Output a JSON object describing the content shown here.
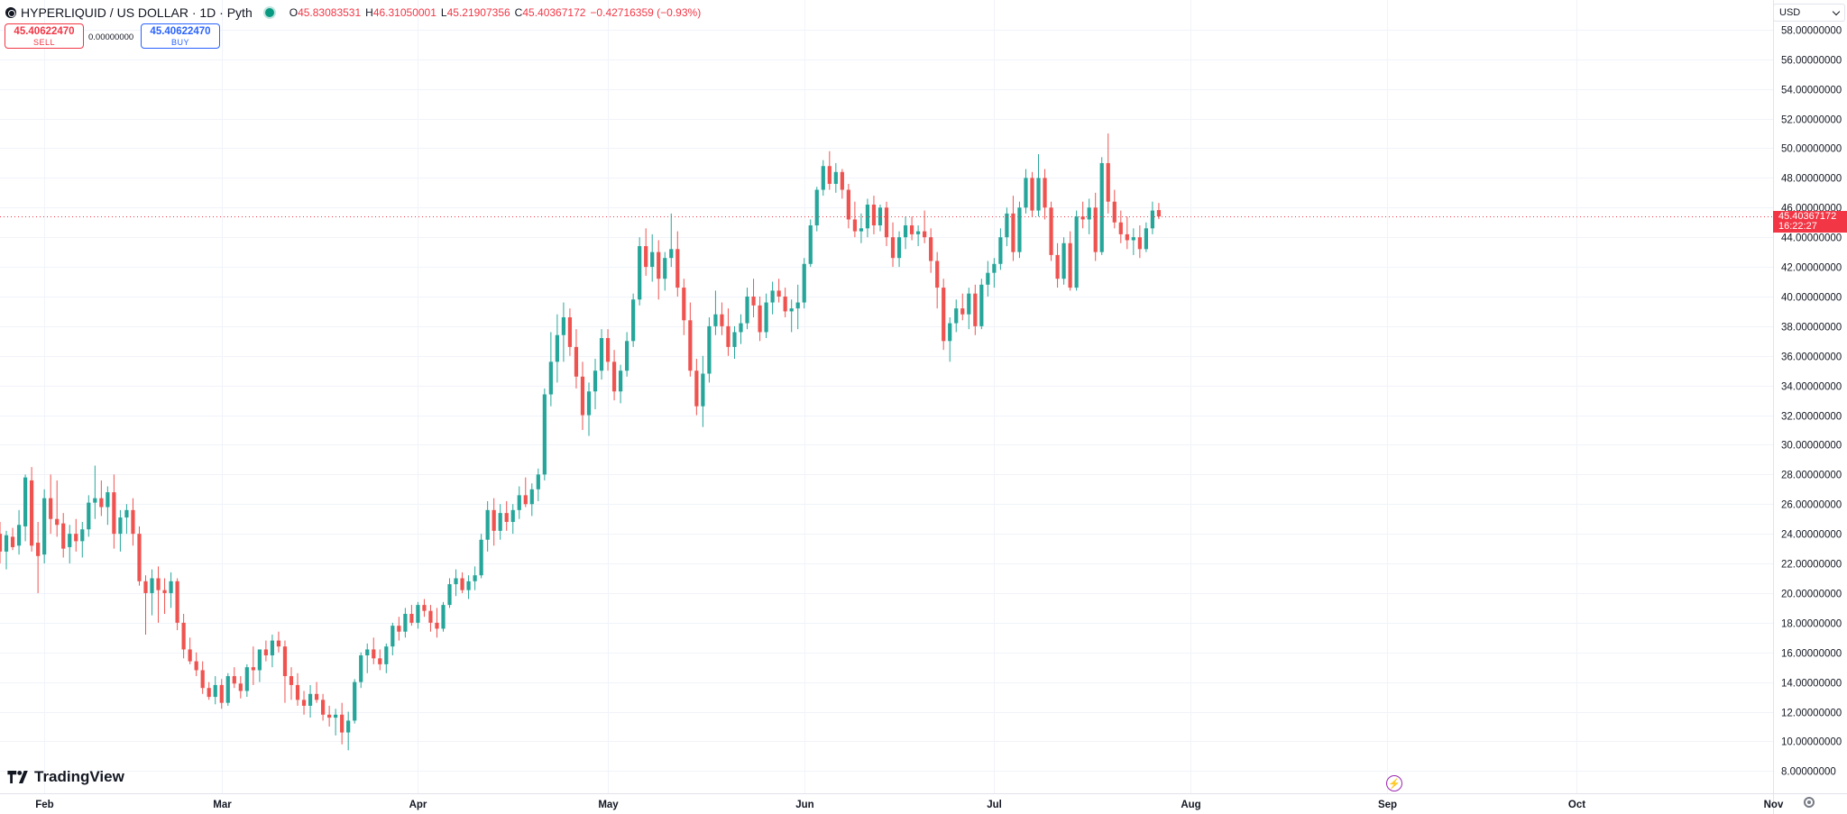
{
  "legend": {
    "symbol": "HYPERLIQUID / US DOLLAR · 1D · Pyth",
    "open_label": "O",
    "open": "45.83083531",
    "high_label": "H",
    "high": "46.31050001",
    "low_label": "L",
    "low": "45.21907356",
    "close_label": "C",
    "close": "45.40367172",
    "change": "−0.42716359 (−0.93%)"
  },
  "trade": {
    "sell_price": "45.40622470",
    "sell_label": "SELL",
    "spread": "0.00000000",
    "buy_price": "45.40622470",
    "buy_label": "BUY"
  },
  "currency": "USD",
  "brand": "TradingView",
  "last_price": {
    "price": "45.40367172",
    "countdown": "16:22:27"
  },
  "colors": {
    "up": "#26a69a",
    "down": "#ef5350",
    "grid": "#f0f3fa",
    "text": "#131722"
  },
  "chart_data": {
    "type": "candlestick",
    "y_ticks": [
      "8.00000000",
      "10.00000000",
      "12.00000000",
      "14.00000000",
      "16.00000000",
      "18.00000000",
      "20.00000000",
      "22.00000000",
      "24.00000000",
      "26.00000000",
      "28.00000000",
      "30.00000000",
      "32.00000000",
      "34.00000000",
      "36.00000000",
      "38.00000000",
      "40.00000000",
      "42.00000000",
      "44.00000000",
      "46.00000000",
      "48.00000000",
      "50.00000000",
      "52.00000000",
      "54.00000000",
      "56.00000000",
      "58.00000000"
    ],
    "ylim": [
      6.5,
      60
    ],
    "x_ticks": [
      {
        "label": "Feb",
        "x": "2025-02-01"
      },
      {
        "label": "Mar",
        "x": "2025-03-01"
      },
      {
        "label": "Apr",
        "x": "2025-04-01"
      },
      {
        "label": "May",
        "x": "2025-05-01"
      },
      {
        "label": "Jun",
        "x": "2025-06-01"
      },
      {
        "label": "Jul",
        "x": "2025-07-01"
      },
      {
        "label": "Aug",
        "x": "2025-08-01"
      },
      {
        "label": "Sep",
        "x": "2025-09-01"
      },
      {
        "label": "Oct",
        "x": "2025-10-01"
      },
      {
        "label": "Nov",
        "x": "2025-11-01"
      }
    ],
    "xlim": [
      "2025-01-25",
      "2025-11-01"
    ],
    "first_date": "2025-01-25",
    "candles": [
      [
        24.0,
        24.8,
        22.0,
        22.8
      ],
      [
        22.8,
        24.2,
        21.6,
        23.9
      ],
      [
        23.8,
        24.4,
        22.9,
        23.1
      ],
      [
        23.2,
        25.6,
        22.6,
        24.6
      ],
      [
        24.5,
        28.0,
        23.5,
        27.8
      ],
      [
        27.6,
        28.5,
        22.8,
        23.2
      ],
      [
        23.4,
        24.8,
        20.0,
        22.5
      ],
      [
        22.6,
        27.0,
        22.0,
        26.4
      ],
      [
        26.4,
        28.0,
        24.0,
        25.0
      ],
      [
        25.0,
        27.6,
        23.8,
        24.6
      ],
      [
        24.7,
        25.4,
        22.4,
        23.0
      ],
      [
        23.1,
        24.6,
        22.0,
        24.0
      ],
      [
        24.0,
        25.0,
        22.8,
        23.5
      ],
      [
        23.5,
        24.8,
        22.4,
        24.3
      ],
      [
        24.3,
        26.6,
        23.8,
        26.1
      ],
      [
        26.1,
        28.6,
        25.0,
        26.4
      ],
      [
        26.4,
        27.6,
        25.2,
        25.8
      ],
      [
        25.8,
        27.2,
        24.6,
        26.8
      ],
      [
        26.8,
        28.0,
        23.0,
        24.0
      ],
      [
        24.0,
        25.6,
        22.8,
        25.1
      ],
      [
        25.1,
        26.0,
        24.0,
        25.6
      ],
      [
        25.6,
        26.4,
        23.2,
        24.0
      ],
      [
        24.0,
        24.5,
        20.5,
        20.8
      ],
      [
        20.8,
        21.2,
        17.2,
        20.0
      ],
      [
        20.0,
        21.6,
        18.5,
        21.0
      ],
      [
        21.0,
        21.8,
        18.0,
        20.2
      ],
      [
        20.2,
        21.0,
        18.6,
        20.0
      ],
      [
        20.0,
        21.4,
        19.0,
        20.8
      ],
      [
        20.8,
        21.0,
        17.5,
        18.0
      ],
      [
        18.0,
        18.6,
        15.6,
        16.2
      ],
      [
        16.2,
        17.0,
        15.2,
        15.4
      ],
      [
        15.4,
        16.0,
        14.4,
        14.8
      ],
      [
        14.8,
        15.4,
        13.2,
        13.6
      ],
      [
        13.6,
        14.0,
        12.8,
        13.0
      ],
      [
        13.0,
        14.4,
        12.5,
        13.8
      ],
      [
        13.8,
        14.2,
        12.2,
        12.6
      ],
      [
        12.6,
        14.6,
        12.4,
        14.4
      ],
      [
        14.4,
        15.0,
        13.6,
        13.9
      ],
      [
        13.9,
        14.4,
        12.9,
        13.4
      ],
      [
        13.4,
        15.2,
        13.0,
        15.0
      ],
      [
        15.0,
        16.4,
        13.8,
        14.8
      ],
      [
        14.8,
        16.0,
        14.0,
        16.2
      ],
      [
        16.2,
        16.8,
        15.4,
        15.8
      ],
      [
        15.8,
        17.2,
        15.0,
        16.8
      ],
      [
        16.8,
        17.4,
        16.0,
        16.4
      ],
      [
        16.4,
        16.8,
        12.6,
        14.4
      ],
      [
        14.4,
        15.0,
        12.8,
        13.8
      ],
      [
        13.8,
        14.6,
        12.4,
        12.8
      ],
      [
        12.8,
        13.4,
        11.8,
        12.4
      ],
      [
        12.4,
        13.8,
        11.6,
        13.2
      ],
      [
        13.2,
        14.0,
        12.6,
        12.8
      ],
      [
        12.8,
        13.2,
        11.4,
        11.8
      ],
      [
        11.8,
        12.4,
        11.0,
        11.6
      ],
      [
        11.6,
        12.2,
        10.4,
        11.8
      ],
      [
        11.8,
        12.6,
        9.8,
        10.6
      ],
      [
        10.6,
        12.0,
        9.4,
        11.4
      ],
      [
        11.4,
        14.2,
        11.2,
        14.0
      ],
      [
        14.0,
        16.0,
        13.6,
        15.8
      ],
      [
        15.8,
        16.6,
        14.6,
        16.2
      ],
      [
        16.2,
        17.0,
        15.2,
        15.6
      ],
      [
        15.6,
        16.2,
        14.8,
        15.2
      ],
      [
        15.2,
        16.6,
        14.6,
        16.4
      ],
      [
        16.4,
        18.0,
        15.8,
        17.8
      ],
      [
        17.8,
        18.4,
        16.8,
        17.4
      ],
      [
        17.4,
        19.0,
        17.0,
        18.6
      ],
      [
        18.6,
        19.2,
        17.8,
        18.0
      ],
      [
        18.0,
        19.4,
        17.6,
        19.2
      ],
      [
        19.2,
        19.6,
        18.4,
        18.8
      ],
      [
        18.8,
        19.2,
        17.4,
        18.0
      ],
      [
        18.0,
        19.0,
        17.0,
        17.6
      ],
      [
        17.6,
        19.4,
        17.4,
        19.2
      ],
      [
        19.2,
        21.0,
        19.0,
        20.6
      ],
      [
        20.6,
        21.6,
        19.8,
        21.0
      ],
      [
        21.0,
        21.4,
        20.0,
        20.2
      ],
      [
        20.2,
        21.2,
        19.6,
        20.8
      ],
      [
        20.8,
        21.8,
        20.2,
        21.2
      ],
      [
        21.2,
        24.0,
        21.0,
        23.6
      ],
      [
        23.6,
        26.2,
        22.8,
        25.6
      ],
      [
        25.6,
        26.4,
        23.2,
        24.2
      ],
      [
        24.2,
        26.0,
        23.6,
        25.4
      ],
      [
        25.4,
        26.2,
        24.2,
        24.8
      ],
      [
        24.8,
        26.0,
        24.0,
        25.6
      ],
      [
        25.6,
        27.2,
        25.0,
        26.6
      ],
      [
        26.6,
        27.8,
        25.8,
        26.0
      ],
      [
        26.0,
        27.4,
        25.2,
        27.0
      ],
      [
        27.0,
        28.4,
        26.2,
        28.0
      ],
      [
        28.0,
        33.8,
        27.6,
        33.4
      ],
      [
        33.4,
        37.6,
        32.6,
        35.6
      ],
      [
        35.6,
        38.8,
        34.2,
        37.4
      ],
      [
        37.4,
        39.6,
        35.6,
        38.6
      ],
      [
        38.6,
        39.2,
        36.0,
        36.6
      ],
      [
        36.6,
        37.8,
        33.8,
        34.6
      ],
      [
        34.6,
        35.6,
        31.0,
        32.0
      ],
      [
        32.0,
        34.2,
        30.6,
        33.6
      ],
      [
        33.6,
        35.8,
        32.4,
        35.0
      ],
      [
        35.0,
        37.8,
        34.4,
        37.2
      ],
      [
        37.2,
        37.8,
        35.0,
        35.6
      ],
      [
        35.6,
        36.4,
        33.0,
        33.6
      ],
      [
        33.6,
        35.4,
        32.8,
        35.0
      ],
      [
        35.0,
        37.6,
        34.6,
        37.0
      ],
      [
        37.0,
        40.2,
        36.6,
        39.8
      ],
      [
        39.8,
        44.0,
        39.4,
        43.4
      ],
      [
        43.4,
        44.6,
        41.4,
        42.0
      ],
      [
        42.0,
        44.2,
        41.0,
        43.0
      ],
      [
        43.0,
        43.8,
        39.8,
        41.2
      ],
      [
        41.2,
        43.0,
        40.4,
        42.6
      ],
      [
        42.6,
        45.6,
        42.0,
        43.2
      ],
      [
        43.2,
        44.4,
        40.0,
        40.6
      ],
      [
        40.6,
        41.2,
        37.4,
        38.4
      ],
      [
        38.4,
        39.6,
        34.6,
        35.0
      ],
      [
        35.0,
        35.8,
        32.0,
        32.6
      ],
      [
        32.6,
        36.0,
        31.2,
        34.8
      ],
      [
        34.8,
        38.6,
        34.2,
        38.0
      ],
      [
        38.0,
        40.4,
        37.4,
        38.8
      ],
      [
        38.8,
        39.6,
        37.4,
        38.0
      ],
      [
        38.0,
        39.2,
        36.0,
        36.6
      ],
      [
        36.6,
        38.0,
        35.8,
        37.6
      ],
      [
        37.6,
        38.8,
        36.8,
        38.2
      ],
      [
        38.2,
        40.6,
        37.8,
        40.0
      ],
      [
        40.0,
        41.2,
        38.6,
        39.4
      ],
      [
        39.4,
        40.0,
        37.0,
        37.6
      ],
      [
        37.6,
        40.2,
        37.2,
        39.6
      ],
      [
        39.6,
        41.0,
        38.8,
        40.4
      ],
      [
        40.4,
        41.2,
        39.6,
        40.0
      ],
      [
        40.0,
        40.6,
        38.6,
        39.0
      ],
      [
        39.0,
        39.8,
        37.6,
        39.2
      ],
      [
        39.2,
        40.8,
        37.8,
        39.6
      ],
      [
        39.6,
        42.6,
        39.2,
        42.2
      ],
      [
        42.2,
        45.2,
        42.0,
        44.8
      ],
      [
        44.8,
        47.4,
        44.4,
        47.2
      ],
      [
        47.2,
        49.2,
        46.8,
        48.8
      ],
      [
        48.8,
        49.8,
        47.2,
        47.6
      ],
      [
        47.6,
        49.0,
        47.0,
        48.4
      ],
      [
        48.4,
        48.6,
        46.6,
        47.2
      ],
      [
        47.2,
        47.6,
        44.6,
        45.2
      ],
      [
        45.2,
        46.4,
        44.0,
        44.4
      ],
      [
        44.4,
        45.6,
        43.6,
        44.6
      ],
      [
        44.6,
        46.6,
        44.0,
        46.2
      ],
      [
        46.2,
        46.8,
        44.2,
        44.8
      ],
      [
        44.8,
        46.2,
        44.4,
        46.0
      ],
      [
        46.0,
        46.4,
        43.4,
        44.0
      ],
      [
        44.0,
        45.0,
        42.0,
        42.6
      ],
      [
        42.6,
        44.4,
        42.0,
        44.0
      ],
      [
        44.0,
        45.4,
        43.2,
        44.8
      ],
      [
        44.8,
        45.4,
        43.8,
        44.2
      ],
      [
        44.2,
        44.8,
        43.4,
        44.4
      ],
      [
        44.4,
        45.8,
        43.6,
        44.0
      ],
      [
        44.0,
        44.6,
        41.6,
        42.4
      ],
      [
        42.4,
        43.0,
        39.2,
        40.6
      ],
      [
        40.6,
        41.2,
        36.4,
        37.0
      ],
      [
        37.0,
        38.6,
        35.6,
        38.2
      ],
      [
        38.2,
        39.8,
        37.6,
        39.2
      ],
      [
        39.2,
        40.2,
        38.4,
        38.8
      ],
      [
        38.8,
        40.6,
        37.8,
        40.2
      ],
      [
        40.2,
        40.8,
        37.4,
        38.0
      ],
      [
        38.0,
        41.2,
        37.8,
        40.8
      ],
      [
        40.8,
        42.4,
        40.0,
        41.6
      ],
      [
        41.6,
        42.6,
        40.6,
        42.2
      ],
      [
        42.2,
        44.6,
        41.8,
        44.0
      ],
      [
        44.0,
        46.0,
        43.4,
        45.6
      ],
      [
        45.6,
        46.8,
        42.4,
        43.0
      ],
      [
        43.0,
        46.4,
        42.6,
        46.0
      ],
      [
        46.0,
        48.6,
        45.6,
        48.0
      ],
      [
        48.0,
        48.4,
        45.4,
        45.8
      ],
      [
        45.8,
        49.6,
        45.4,
        48.0
      ],
      [
        48.0,
        48.6,
        45.2,
        46.0
      ],
      [
        46.0,
        46.4,
        42.4,
        42.8
      ],
      [
        42.8,
        43.6,
        40.6,
        41.2
      ],
      [
        41.2,
        44.0,
        40.8,
        43.6
      ],
      [
        43.6,
        44.4,
        40.4,
        40.6
      ],
      [
        40.6,
        45.8,
        40.4,
        45.4
      ],
      [
        45.4,
        46.4,
        44.6,
        45.2
      ],
      [
        45.2,
        46.6,
        44.2,
        46.0
      ],
      [
        46.0,
        47.0,
        42.4,
        43.0
      ],
      [
        43.0,
        49.4,
        42.8,
        49.0
      ],
      [
        49.0,
        51.0,
        45.6,
        46.4
      ],
      [
        46.4,
        47.2,
        44.6,
        45.0
      ],
      [
        45.0,
        45.8,
        43.6,
        44.2
      ],
      [
        44.2,
        45.4,
        43.2,
        43.8
      ],
      [
        43.8,
        44.6,
        42.8,
        44.0
      ],
      [
        44.0,
        44.8,
        42.6,
        43.2
      ],
      [
        43.2,
        45.0,
        43.0,
        44.6
      ],
      [
        44.6,
        46.4,
        44.2,
        45.8
      ],
      [
        45.83083531,
        46.31050001,
        45.21907356,
        45.40367172
      ]
    ]
  }
}
